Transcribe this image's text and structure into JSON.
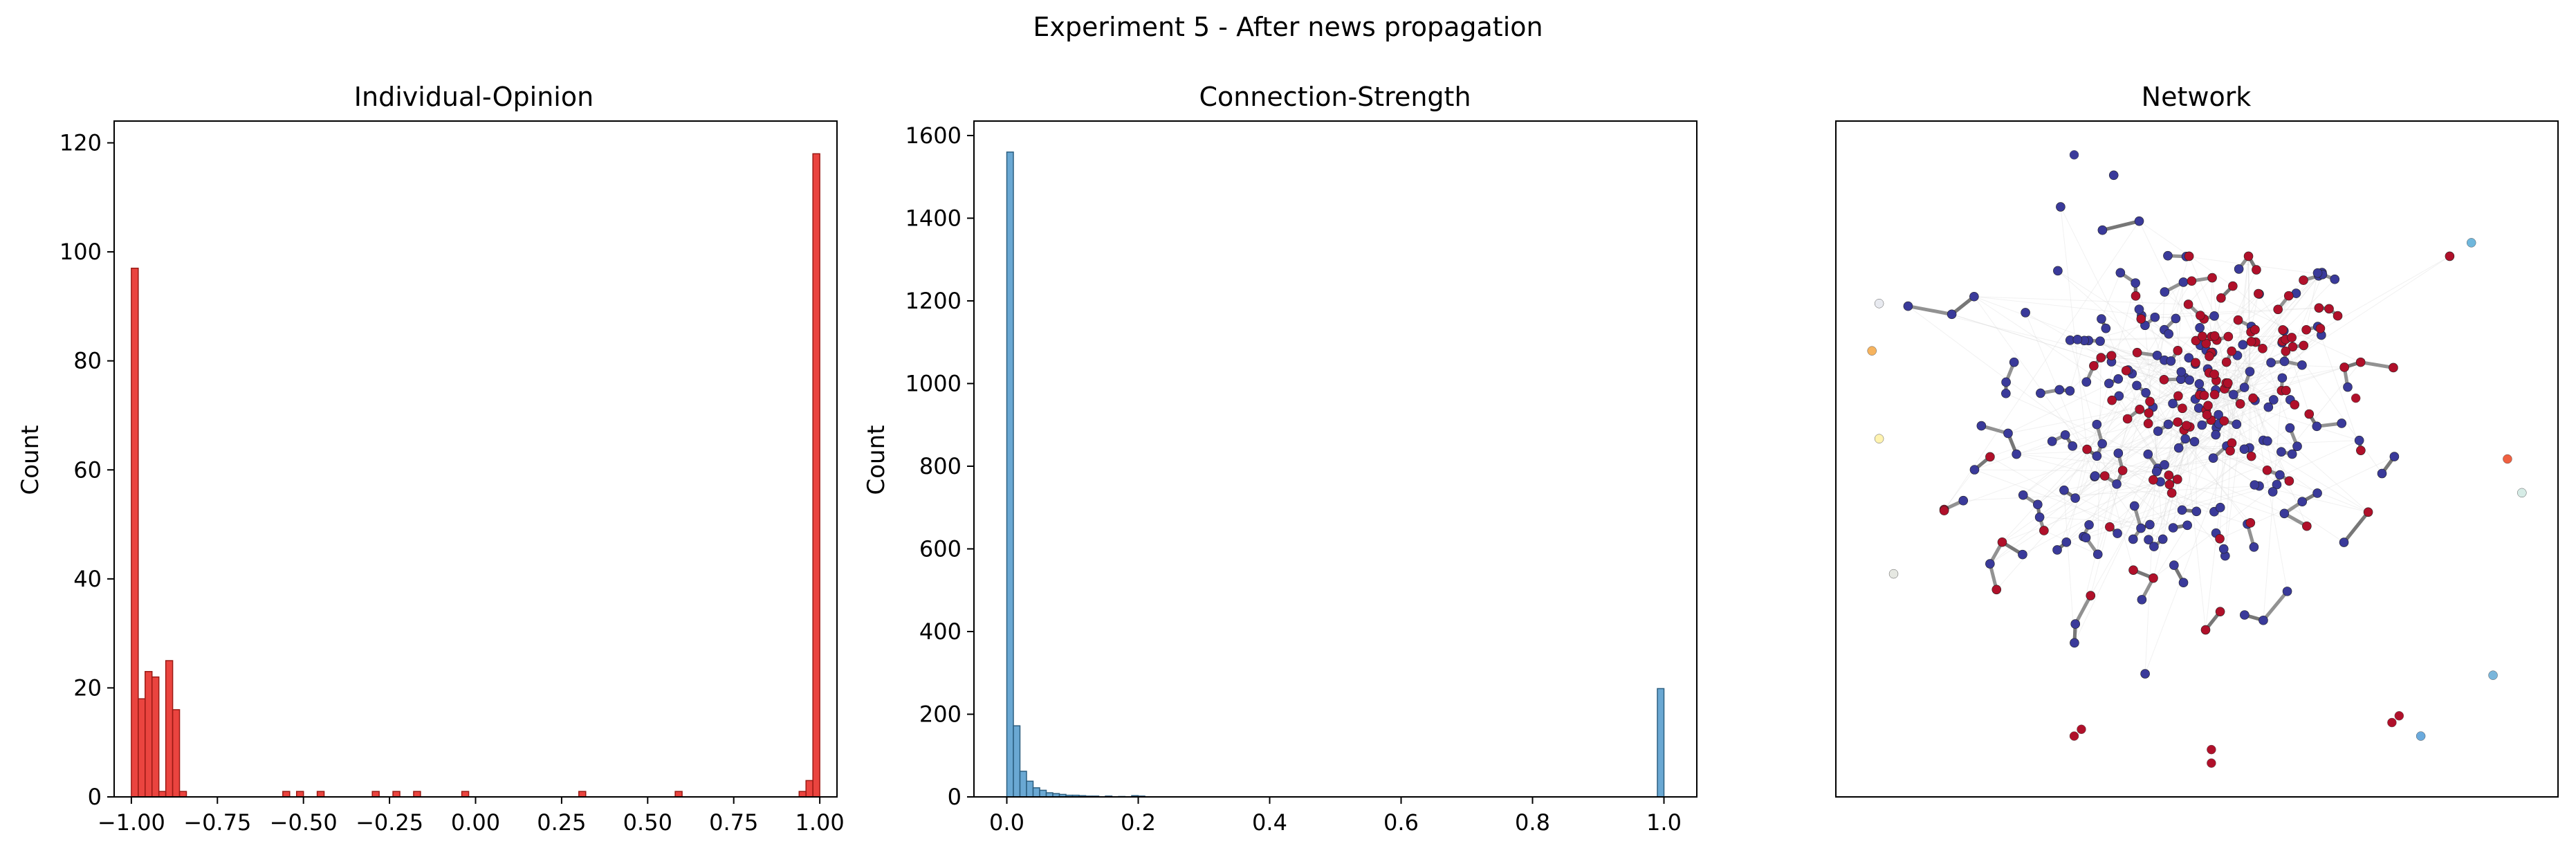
{
  "figure": {
    "title": "Experiment 5 - After news propagation"
  },
  "colors": {
    "opinion_bar": "#e8302a",
    "opinion_edge": "#9a1a14",
    "strength_bar": "#5a9fce",
    "strength_edge": "#2c5f80",
    "network_blue": "#3a3a9a",
    "network_red": "#b0102a",
    "network_edge": "#6d6d6d"
  },
  "chart_data": [
    {
      "type": "bar",
      "title": "Individual-Opinion",
      "ylabel": "Count",
      "xlabel": "",
      "xlim": [
        -1.05,
        1.05
      ],
      "ylim": [
        0,
        124
      ],
      "xticks": [
        "−1.00",
        "−0.75",
        "−0.50",
        "−0.25",
        "0.00",
        "0.25",
        "0.50",
        "0.75",
        "1.00"
      ],
      "xtick_values": [
        -1.0,
        -0.75,
        -0.5,
        -0.25,
        0.0,
        0.25,
        0.5,
        0.75,
        1.0
      ],
      "yticks": [
        "0",
        "20",
        "40",
        "60",
        "80",
        "100",
        "120"
      ],
      "ytick_values": [
        0,
        20,
        40,
        60,
        80,
        100,
        120
      ],
      "bin_width": 0.02,
      "bins": [
        {
          "x": -1.0,
          "count": 97
        },
        {
          "x": -0.98,
          "count": 18
        },
        {
          "x": -0.96,
          "count": 23
        },
        {
          "x": -0.94,
          "count": 22
        },
        {
          "x": -0.92,
          "count": 1
        },
        {
          "x": -0.9,
          "count": 25
        },
        {
          "x": -0.88,
          "count": 16
        },
        {
          "x": -0.86,
          "count": 1
        },
        {
          "x": -0.56,
          "count": 1
        },
        {
          "x": -0.52,
          "count": 1
        },
        {
          "x": -0.46,
          "count": 1
        },
        {
          "x": -0.3,
          "count": 1
        },
        {
          "x": -0.24,
          "count": 1
        },
        {
          "x": -0.18,
          "count": 1
        },
        {
          "x": -0.04,
          "count": 1
        },
        {
          "x": 0.3,
          "count": 1
        },
        {
          "x": 0.58,
          "count": 1
        },
        {
          "x": 0.94,
          "count": 1
        },
        {
          "x": 0.96,
          "count": 3
        },
        {
          "x": 0.98,
          "count": 118
        }
      ]
    },
    {
      "type": "bar",
      "title": "Connection-Strength",
      "ylabel": "Count",
      "xlabel": "",
      "xlim": [
        -0.05,
        1.05
      ],
      "ylim": [
        0,
        1635
      ],
      "xticks": [
        "0.0",
        "0.2",
        "0.4",
        "0.6",
        "0.8",
        "1.0"
      ],
      "xtick_values": [
        0.0,
        0.2,
        0.4,
        0.6,
        0.8,
        1.0
      ],
      "yticks": [
        "0",
        "200",
        "400",
        "600",
        "800",
        "1000",
        "1200",
        "1400",
        "1600"
      ],
      "ytick_values": [
        0,
        200,
        400,
        600,
        800,
        1000,
        1200,
        1400,
        1600
      ],
      "bin_width": 0.01,
      "bins": [
        {
          "x": 0.0,
          "count": 1560
        },
        {
          "x": 0.01,
          "count": 172
        },
        {
          "x": 0.02,
          "count": 62
        },
        {
          "x": 0.03,
          "count": 38
        },
        {
          "x": 0.04,
          "count": 22
        },
        {
          "x": 0.05,
          "count": 16
        },
        {
          "x": 0.06,
          "count": 10
        },
        {
          "x": 0.07,
          "count": 8
        },
        {
          "x": 0.08,
          "count": 6
        },
        {
          "x": 0.09,
          "count": 4
        },
        {
          "x": 0.1,
          "count": 4
        },
        {
          "x": 0.11,
          "count": 3
        },
        {
          "x": 0.12,
          "count": 2
        },
        {
          "x": 0.13,
          "count": 2
        },
        {
          "x": 0.15,
          "count": 2
        },
        {
          "x": 0.17,
          "count": 1
        },
        {
          "x": 0.19,
          "count": 3
        },
        {
          "x": 0.2,
          "count": 2
        },
        {
          "x": 0.99,
          "count": 262
        }
      ]
    },
    {
      "type": "scatter",
      "title": "Network",
      "xlabel": "",
      "ylabel": "",
      "axes_ticks": "none",
      "description_kind": "network graph",
      "xlim": [
        0,
        100
      ],
      "ylim": [
        0,
        100
      ],
      "outlier_nodes": [
        {
          "x": 33,
          "y": 95,
          "color": "#3a3a9a"
        },
        {
          "x": 88,
          "y": 82,
          "color": "#6fb7dc"
        },
        {
          "x": 6,
          "y": 73,
          "color": "#e8eaf0"
        },
        {
          "x": 5,
          "y": 66,
          "color": "#f6b35e"
        },
        {
          "x": 6,
          "y": 53,
          "color": "#fff3b0"
        },
        {
          "x": 93,
          "y": 50,
          "color": "#f06040"
        },
        {
          "x": 95,
          "y": 45,
          "color": "#d6ece6"
        },
        {
          "x": 8,
          "y": 33,
          "color": "#e6e8e2"
        },
        {
          "x": 91,
          "y": 18,
          "color": "#7ab6db"
        },
        {
          "x": 81,
          "y": 9,
          "color": "#6aaadd"
        },
        {
          "x": 34,
          "y": 10,
          "color": "#b0102a"
        },
        {
          "x": 33,
          "y": 9,
          "color": "#b0102a"
        },
        {
          "x": 52,
          "y": 7,
          "color": "#b0102a"
        },
        {
          "x": 52,
          "y": 5,
          "color": "#b0102a"
        },
        {
          "x": 77,
          "y": 11,
          "color": "#b0102a"
        },
        {
          "x": 78,
          "y": 12,
          "color": "#b0102a"
        },
        {
          "x": 72,
          "y": 59,
          "color": "#b0102a"
        }
      ],
      "cluster": {
        "center": [
          47,
          56
        ],
        "spread": [
          15,
          16
        ],
        "blue_nodes": 190,
        "red_nodes": 120
      }
    }
  ]
}
